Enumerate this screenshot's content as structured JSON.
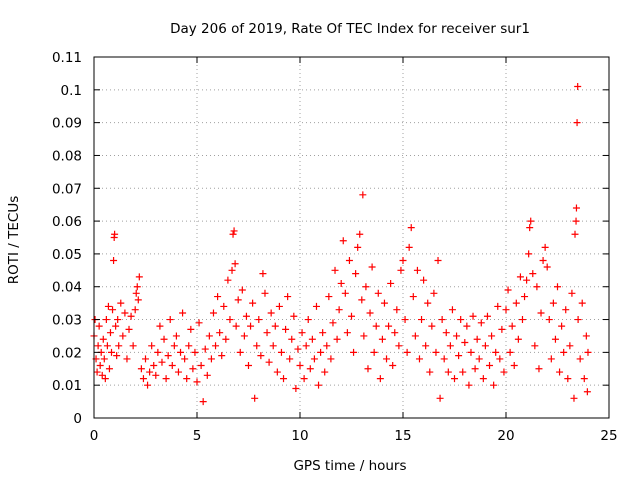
{
  "chart_data": {
    "type": "scatter",
    "title": "Day 206 of 2019, Rate Of TEC Index for receiver sur1",
    "xlabel": "GPS time / hours",
    "ylabel": "ROTI / TECUs",
    "xlim": [
      0,
      25
    ],
    "ylim": [
      0,
      0.11
    ],
    "xticks": [
      "0",
      "5",
      "10",
      "15",
      "20",
      "25"
    ],
    "yticks": [
      "0",
      "0.01",
      "0.02",
      "0.03",
      "0.04",
      "0.05",
      "0.06",
      "0.07",
      "0.08",
      "0.09",
      "0.1",
      "0.11"
    ],
    "grid": true,
    "marker": "+",
    "color": "#ff0000",
    "series": [
      {
        "points": [
          [
            0.0,
            0.025
          ],
          [
            0.05,
            0.03
          ],
          [
            0.1,
            0.018
          ],
          [
            0.15,
            0.014
          ],
          [
            0.2,
            0.022
          ],
          [
            0.25,
            0.028
          ],
          [
            0.3,
            0.016
          ],
          [
            0.35,
            0.02
          ],
          [
            0.4,
            0.013
          ],
          [
            0.45,
            0.024
          ],
          [
            0.5,
            0.018
          ],
          [
            0.55,
            0.012
          ],
          [
            0.6,
            0.03
          ],
          [
            0.65,
            0.022
          ],
          [
            0.7,
            0.034
          ],
          [
            0.75,
            0.015
          ],
          [
            0.8,
            0.026
          ],
          [
            0.85,
            0.02
          ],
          [
            0.9,
            0.033
          ],
          [
            0.95,
            0.048
          ],
          [
            0.98,
            0.055
          ],
          [
            1.0,
            0.056
          ],
          [
            1.05,
            0.028
          ],
          [
            1.1,
            0.019
          ],
          [
            1.15,
            0.03
          ],
          [
            1.2,
            0.022
          ],
          [
            1.3,
            0.035
          ],
          [
            1.4,
            0.025
          ],
          [
            1.5,
            0.032
          ],
          [
            1.6,
            0.018
          ],
          [
            1.7,
            0.027
          ],
          [
            1.8,
            0.031
          ],
          [
            1.9,
            0.022
          ],
          [
            2.0,
            0.033
          ],
          [
            2.05,
            0.038
          ],
          [
            2.1,
            0.04
          ],
          [
            2.15,
            0.036
          ],
          [
            2.2,
            0.043
          ],
          [
            2.3,
            0.015
          ],
          [
            2.4,
            0.012
          ],
          [
            2.5,
            0.018
          ],
          [
            2.6,
            0.01
          ],
          [
            2.7,
            0.014
          ],
          [
            2.8,
            0.022
          ],
          [
            2.9,
            0.016
          ],
          [
            3.0,
            0.013
          ],
          [
            3.1,
            0.02
          ],
          [
            3.2,
            0.028
          ],
          [
            3.3,
            0.017
          ],
          [
            3.4,
            0.024
          ],
          [
            3.5,
            0.012
          ],
          [
            3.6,
            0.019
          ],
          [
            3.7,
            0.03
          ],
          [
            3.8,
            0.016
          ],
          [
            3.9,
            0.022
          ],
          [
            4.0,
            0.025
          ],
          [
            4.1,
            0.014
          ],
          [
            4.2,
            0.02
          ],
          [
            4.3,
            0.032
          ],
          [
            4.4,
            0.018
          ],
          [
            4.5,
            0.012
          ],
          [
            4.6,
            0.022
          ],
          [
            4.7,
            0.027
          ],
          [
            4.8,
            0.015
          ],
          [
            4.9,
            0.02
          ],
          [
            5.0,
            0.011
          ],
          [
            5.1,
            0.029
          ],
          [
            5.2,
            0.016
          ],
          [
            5.3,
            0.005
          ],
          [
            5.4,
            0.021
          ],
          [
            5.5,
            0.013
          ],
          [
            5.6,
            0.025
          ],
          [
            5.7,
            0.018
          ],
          [
            5.8,
            0.032
          ],
          [
            5.9,
            0.022
          ],
          [
            6.0,
            0.037
          ],
          [
            6.1,
            0.026
          ],
          [
            6.2,
            0.019
          ],
          [
            6.3,
            0.034
          ],
          [
            6.4,
            0.024
          ],
          [
            6.5,
            0.042
          ],
          [
            6.6,
            0.03
          ],
          [
            6.7,
            0.045
          ],
          [
            6.75,
            0.056
          ],
          [
            6.8,
            0.057
          ],
          [
            6.85,
            0.047
          ],
          [
            6.9,
            0.028
          ],
          [
            7.0,
            0.036
          ],
          [
            7.1,
            0.02
          ],
          [
            7.2,
            0.039
          ],
          [
            7.3,
            0.025
          ],
          [
            7.4,
            0.031
          ],
          [
            7.5,
            0.016
          ],
          [
            7.6,
            0.028
          ],
          [
            7.7,
            0.035
          ],
          [
            7.8,
            0.006
          ],
          [
            7.9,
            0.022
          ],
          [
            8.0,
            0.03
          ],
          [
            8.1,
            0.019
          ],
          [
            8.2,
            0.044
          ],
          [
            8.3,
            0.038
          ],
          [
            8.4,
            0.026
          ],
          [
            8.5,
            0.017
          ],
          [
            8.6,
            0.032
          ],
          [
            8.7,
            0.022
          ],
          [
            8.8,
            0.028
          ],
          [
            8.9,
            0.014
          ],
          [
            9.0,
            0.034
          ],
          [
            9.1,
            0.02
          ],
          [
            9.2,
            0.012
          ],
          [
            9.3,
            0.027
          ],
          [
            9.4,
            0.037
          ],
          [
            9.5,
            0.018
          ],
          [
            9.6,
            0.024
          ],
          [
            9.7,
            0.031
          ],
          [
            9.8,
            0.009
          ],
          [
            9.9,
            0.021
          ],
          [
            10.0,
            0.016
          ],
          [
            10.1,
            0.026
          ],
          [
            10.2,
            0.012
          ],
          [
            10.3,
            0.022
          ],
          [
            10.4,
            0.03
          ],
          [
            10.5,
            0.015
          ],
          [
            10.6,
            0.024
          ],
          [
            10.7,
            0.018
          ],
          [
            10.8,
            0.034
          ],
          [
            10.9,
            0.01
          ],
          [
            11.0,
            0.02
          ],
          [
            11.1,
            0.026
          ],
          [
            11.2,
            0.014
          ],
          [
            11.3,
            0.022
          ],
          [
            11.4,
            0.037
          ],
          [
            11.5,
            0.018
          ],
          [
            11.6,
            0.029
          ],
          [
            11.7,
            0.045
          ],
          [
            11.8,
            0.024
          ],
          [
            11.9,
            0.033
          ],
          [
            12.0,
            0.041
          ],
          [
            12.1,
            0.054
          ],
          [
            12.2,
            0.038
          ],
          [
            12.3,
            0.026
          ],
          [
            12.4,
            0.048
          ],
          [
            12.5,
            0.031
          ],
          [
            12.6,
            0.02
          ],
          [
            12.7,
            0.044
          ],
          [
            12.8,
            0.052
          ],
          [
            12.9,
            0.056
          ],
          [
            13.0,
            0.036
          ],
          [
            13.05,
            0.068
          ],
          [
            13.1,
            0.025
          ],
          [
            13.2,
            0.04
          ],
          [
            13.3,
            0.015
          ],
          [
            13.4,
            0.032
          ],
          [
            13.5,
            0.046
          ],
          [
            13.6,
            0.02
          ],
          [
            13.7,
            0.028
          ],
          [
            13.8,
            0.038
          ],
          [
            13.9,
            0.012
          ],
          [
            14.0,
            0.024
          ],
          [
            14.1,
            0.035
          ],
          [
            14.2,
            0.018
          ],
          [
            14.3,
            0.028
          ],
          [
            14.4,
            0.041
          ],
          [
            14.5,
            0.016
          ],
          [
            14.6,
            0.026
          ],
          [
            14.7,
            0.033
          ],
          [
            14.8,
            0.022
          ],
          [
            14.9,
            0.045
          ],
          [
            15.0,
            0.048
          ],
          [
            15.1,
            0.03
          ],
          [
            15.2,
            0.02
          ],
          [
            15.3,
            0.052
          ],
          [
            15.4,
            0.058
          ],
          [
            15.5,
            0.037
          ],
          [
            15.6,
            0.025
          ],
          [
            15.7,
            0.045
          ],
          [
            15.8,
            0.018
          ],
          [
            15.9,
            0.03
          ],
          [
            16.0,
            0.042
          ],
          [
            16.1,
            0.022
          ],
          [
            16.2,
            0.035
          ],
          [
            16.3,
            0.014
          ],
          [
            16.4,
            0.028
          ],
          [
            16.5,
            0.038
          ],
          [
            16.6,
            0.02
          ],
          [
            16.7,
            0.048
          ],
          [
            16.8,
            0.006
          ],
          [
            16.9,
            0.03
          ],
          [
            17.0,
            0.018
          ],
          [
            17.1,
            0.026
          ],
          [
            17.2,
            0.014
          ],
          [
            17.3,
            0.022
          ],
          [
            17.4,
            0.033
          ],
          [
            17.5,
            0.012
          ],
          [
            17.6,
            0.025
          ],
          [
            17.7,
            0.019
          ],
          [
            17.8,
            0.03
          ],
          [
            17.9,
            0.014
          ],
          [
            18.0,
            0.023
          ],
          [
            18.1,
            0.028
          ],
          [
            18.2,
            0.01
          ],
          [
            18.3,
            0.02
          ],
          [
            18.4,
            0.031
          ],
          [
            18.5,
            0.015
          ],
          [
            18.6,
            0.024
          ],
          [
            18.7,
            0.018
          ],
          [
            18.8,
            0.029
          ],
          [
            18.9,
            0.012
          ],
          [
            19.0,
            0.022
          ],
          [
            19.1,
            0.031
          ],
          [
            19.2,
            0.016
          ],
          [
            19.3,
            0.025
          ],
          [
            19.4,
            0.01
          ],
          [
            19.5,
            0.02
          ],
          [
            19.6,
            0.034
          ],
          [
            19.7,
            0.018
          ],
          [
            19.8,
            0.027
          ],
          [
            19.9,
            0.014
          ],
          [
            20.0,
            0.033
          ],
          [
            20.1,
            0.039
          ],
          [
            20.2,
            0.02
          ],
          [
            20.3,
            0.028
          ],
          [
            20.4,
            0.016
          ],
          [
            20.5,
            0.035
          ],
          [
            20.6,
            0.024
          ],
          [
            20.7,
            0.043
          ],
          [
            20.8,
            0.03
          ],
          [
            20.9,
            0.037
          ],
          [
            21.0,
            0.042
          ],
          [
            21.1,
            0.05
          ],
          [
            21.15,
            0.058
          ],
          [
            21.2,
            0.06
          ],
          [
            21.3,
            0.044
          ],
          [
            21.4,
            0.022
          ],
          [
            21.5,
            0.04
          ],
          [
            21.6,
            0.015
          ],
          [
            21.7,
            0.032
          ],
          [
            21.8,
            0.048
          ],
          [
            21.9,
            0.052
          ],
          [
            22.0,
            0.046
          ],
          [
            22.1,
            0.03
          ],
          [
            22.2,
            0.018
          ],
          [
            22.3,
            0.035
          ],
          [
            22.4,
            0.024
          ],
          [
            22.5,
            0.04
          ],
          [
            22.6,
            0.014
          ],
          [
            22.7,
            0.028
          ],
          [
            22.8,
            0.02
          ],
          [
            22.9,
            0.033
          ],
          [
            23.0,
            0.012
          ],
          [
            23.1,
            0.022
          ],
          [
            23.2,
            0.038
          ],
          [
            23.3,
            0.006
          ],
          [
            23.35,
            0.056
          ],
          [
            23.4,
            0.06
          ],
          [
            23.42,
            0.064
          ],
          [
            23.45,
            0.09
          ],
          [
            23.48,
            0.101
          ],
          [
            23.5,
            0.03
          ],
          [
            23.6,
            0.018
          ],
          [
            23.7,
            0.035
          ],
          [
            23.8,
            0.012
          ],
          [
            23.9,
            0.025
          ],
          [
            23.95,
            0.008
          ],
          [
            23.98,
            0.02
          ]
        ]
      }
    ]
  }
}
